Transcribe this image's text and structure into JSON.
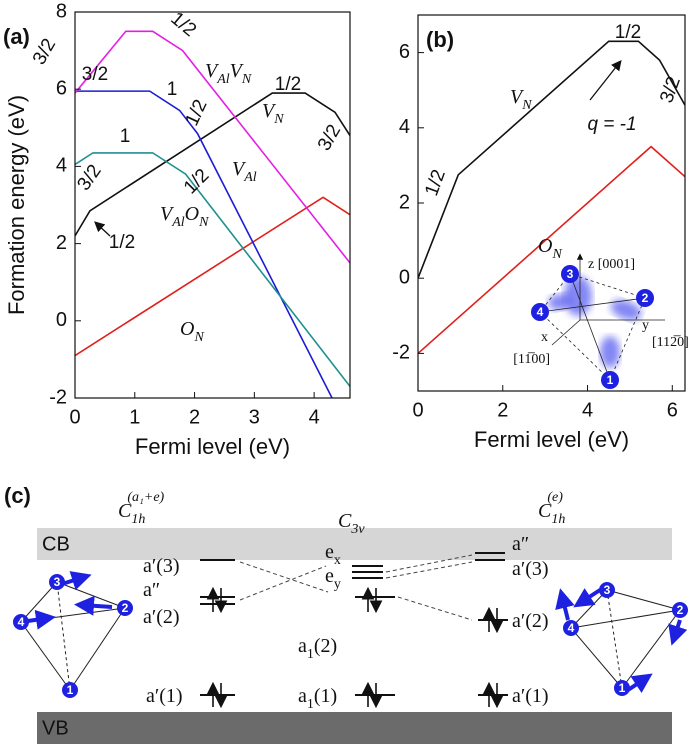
{
  "chart_data": [
    {
      "type": "line",
      "label": "(a)",
      "xlabel": "Fermi level (eV)",
      "ylabel": "Formation energy (eV)",
      "xlim": [
        0,
        4.6
      ],
      "xticks": [
        0,
        1,
        2,
        3,
        4
      ],
      "ylim": [
        -2,
        8
      ],
      "yticks": [
        -2,
        0,
        2,
        4,
        6,
        8
      ],
      "series": [
        {
          "name": [
            "O",
            "N"
          ],
          "color": "#e0201b",
          "x": [
            0,
            4.15,
            4.6
          ],
          "values": [
            -0.9,
            3.2,
            2.75
          ]
        },
        {
          "name": [
            "V",
            "N"
          ],
          "color": "#111111",
          "x": [
            0,
            0.25,
            3.3,
            3.85,
            4.35,
            4.6
          ],
          "values": [
            2.2,
            2.85,
            5.9,
            5.9,
            5.4,
            4.8
          ]
        },
        {
          "name": [
            "V",
            "Al"
          ],
          "color": "#1c1cd6",
          "x": [
            0,
            1.25,
            1.75,
            2.05,
            4.3
          ],
          "values": [
            5.95,
            5.95,
            5.45,
            4.85,
            -2
          ]
        },
        {
          "name": [
            "V",
            "Al",
            "O",
            "N"
          ],
          "color": "#1f9090",
          "x": [
            0,
            0.3,
            1.3,
            1.85,
            4.6
          ],
          "values": [
            4.05,
            4.35,
            4.35,
            3.8,
            -1.7
          ]
        },
        {
          "name": [
            "V",
            "Al",
            "V",
            "N"
          ],
          "color": "#e51ee5",
          "x": [
            0,
            0.85,
            1.3,
            1.8,
            4.6
          ],
          "values": [
            5.9,
            7.5,
            7.5,
            7.0,
            1.5
          ]
        }
      ],
      "annotations": [
        {
          "text": "3/2",
          "color": "#e51ee5"
        },
        {
          "text": "1/2",
          "color": "#e51ee5"
        },
        {
          "text": "3/2",
          "color": "#1c1cd6"
        },
        {
          "text": "1",
          "color": "#1c1cd6"
        },
        {
          "text": "1/2",
          "color": "#1c1cd6"
        },
        {
          "text": "1",
          "color": "#2a6e1a"
        },
        {
          "text": "3/2",
          "color": "#2a6e1a"
        },
        {
          "text": "1/2",
          "color": "#2a6e1a"
        },
        {
          "text": "1/2",
          "color": "#111111"
        },
        {
          "text": "1/2",
          "color": "#111111"
        },
        {
          "text": "3/2",
          "color": "#111111"
        }
      ]
    },
    {
      "type": "line",
      "label": "(b)",
      "xlabel": "Fermi level (eV)",
      "xlim": [
        0,
        6.3
      ],
      "xticks": [
        0,
        2,
        4,
        6
      ],
      "ylim": [
        -3,
        7
      ],
      "yticks": [
        -2,
        0,
        2,
        4,
        6
      ],
      "series": [
        {
          "name": [
            "V",
            "N"
          ],
          "color": "#111111",
          "x": [
            0,
            0.95,
            4.5,
            5.2,
            5.7,
            6.3
          ],
          "values": [
            0,
            2.75,
            6.3,
            6.3,
            5.8,
            4.6
          ]
        },
        {
          "name": [
            "O",
            "N"
          ],
          "color": "#e0201b",
          "x": [
            0,
            5.5,
            6.3
          ],
          "values": [
            -2,
            3.5,
            2.7
          ]
        }
      ],
      "annotations": [
        {
          "text": "1/2",
          "color": "#111111"
        },
        {
          "text": "1/2",
          "color": "#111111"
        },
        {
          "text": "3/2",
          "color": "#111111"
        },
        {
          "text": "q = -1",
          "color": "#111111"
        }
      ],
      "inset": {
        "atoms": [
          "1",
          "2",
          "3",
          "4"
        ],
        "labels": [
          "z [0001]",
          "y",
          "[112̅0]",
          "x",
          "[11̅00]"
        ]
      }
    }
  ],
  "diagram": {
    "label": "(c)",
    "headers": [
      {
        "parts": [
          "C",
          "1h"
        ],
        "sup": "(a₁+e)"
      },
      {
        "parts": [
          "C",
          "3v"
        ]
      },
      {
        "parts": [
          "C",
          "1h"
        ],
        "sup": "(e)"
      }
    ],
    "bands": [
      "CB",
      "VB"
    ],
    "left_levels": [
      [
        "a′(3)"
      ],
      [
        "a″"
      ],
      [
        "a′(2)"
      ],
      [
        "a′(1)"
      ]
    ],
    "middle_levels": [
      [
        "e",
        "x"
      ],
      [
        "e",
        "y"
      ],
      [
        "a",
        "1",
        "(2)"
      ],
      [
        "a",
        "1",
        "(1)"
      ]
    ],
    "right_levels": [
      [
        "a″"
      ],
      [
        "a′(3)"
      ],
      [
        "a′(2)"
      ],
      [
        "a′(1)"
      ]
    ],
    "left_atoms": [
      "1",
      "2",
      "3",
      "4"
    ],
    "right_atoms": [
      "1",
      "2",
      "3",
      "4"
    ]
  }
}
